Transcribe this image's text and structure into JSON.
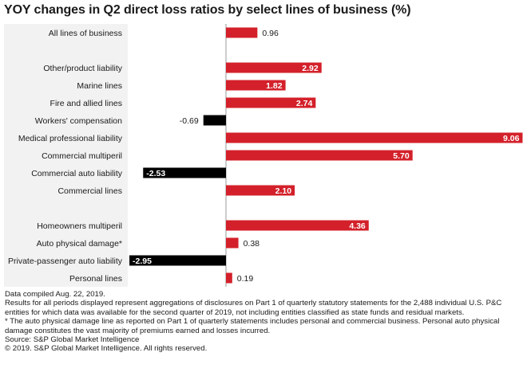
{
  "title": "YOY changes in Q2 direct loss ratios by select lines of business (%)",
  "colors": {
    "positive": "#d3202a",
    "negative": "#000000",
    "axis": "#9a9a9a"
  },
  "chart_data": {
    "type": "bar",
    "orientation": "horizontal",
    "title": "YOY changes in Q2 direct loss ratios by select lines of business (%)",
    "xlim": [
      -3.3,
      9.5
    ],
    "grid": false,
    "legend": "none",
    "categories": [
      "All lines of business",
      "",
      "Other/product liability",
      "Marine lines",
      "Fire and allied lines",
      "Workers' compensation",
      "Medical professional liability",
      "Commercial multiperil",
      "Commercial auto liability",
      "Commercial lines",
      "",
      "Homeowners multiperil",
      "Auto physical damage*",
      "Private-passenger auto liability",
      "Personal lines"
    ],
    "values": [
      0.96,
      null,
      2.92,
      1.82,
      2.74,
      -0.69,
      9.06,
      5.7,
      -2.53,
      2.1,
      null,
      4.36,
      0.38,
      -2.95,
      0.19
    ],
    "value_labels": [
      "0.96",
      "",
      "2.92",
      "1.82",
      "2.74",
      "-0.69",
      "9.06",
      "5.70",
      "-2.53",
      "2.10",
      "",
      "4.36",
      "0.38",
      "-2.95",
      "0.19"
    ]
  },
  "notes": [
    "Data compiled Aug. 22, 2019.",
    "Results for all periods displayed represent aggregations of disclosures on Part 1 of quarterly statutory statements for the 2,488 individual U.S. P&C entities for which data was available for the second quarter of 2019, not including entities classified as state funds and residual markets.",
    "* The auto physical damage line as reported on Part 1 of quarterly statements includes personal and commercial business. Personal auto physical damage constitutes the vast majority of premiums earned and losses incurred.",
    "Source: S&P Global Market Intelligence",
    "© 2019. S&P Global Market Intelligence. All rights reserved."
  ]
}
